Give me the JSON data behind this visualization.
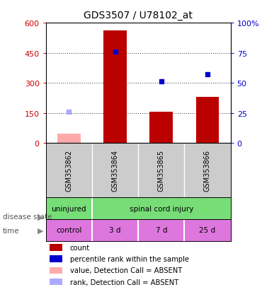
{
  "title": "GDS3507 / U78102_at",
  "samples": [
    "GSM353862",
    "GSM353864",
    "GSM353865",
    "GSM353866"
  ],
  "count_values": [
    null,
    560,
    155,
    230
  ],
  "count_absent": [
    45,
    null,
    null,
    null
  ],
  "percentile_values": [
    null,
    76,
    51,
    57
  ],
  "rank_absent": [
    null,
    null,
    null,
    null
  ],
  "rank_absent_sample1": [
    26,
    null,
    null,
    null
  ],
  "ylim_left": [
    0,
    600
  ],
  "ylim_right": [
    0,
    100
  ],
  "yticks_left": [
    0,
    150,
    300,
    450,
    600
  ],
  "yticks_right": [
    0,
    25,
    50,
    75,
    100
  ],
  "ytick_labels_left": [
    "0",
    "150",
    "300",
    "450",
    "600"
  ],
  "ytick_labels_right": [
    "0",
    "25",
    "50",
    "75",
    "100%"
  ],
  "disease_state_labels": [
    "uninjured",
    "spinal cord injury"
  ],
  "time_labels": [
    "control",
    "3 d",
    "7 d",
    "25 d"
  ],
  "disease_state_color": "#77dd77",
  "time_color": "#dd77dd",
  "bar_color_present": "#bb0000",
  "bar_color_absent": "#ffaaaa",
  "dot_color_present": "#0000cc",
  "rank_absent_color": "#aaaaff",
  "grid_color": "#555555",
  "sample_box_color": "#cccccc",
  "left_axis_color": "#cc0000",
  "right_axis_color": "#0000cc",
  "bar_width": 0.5
}
